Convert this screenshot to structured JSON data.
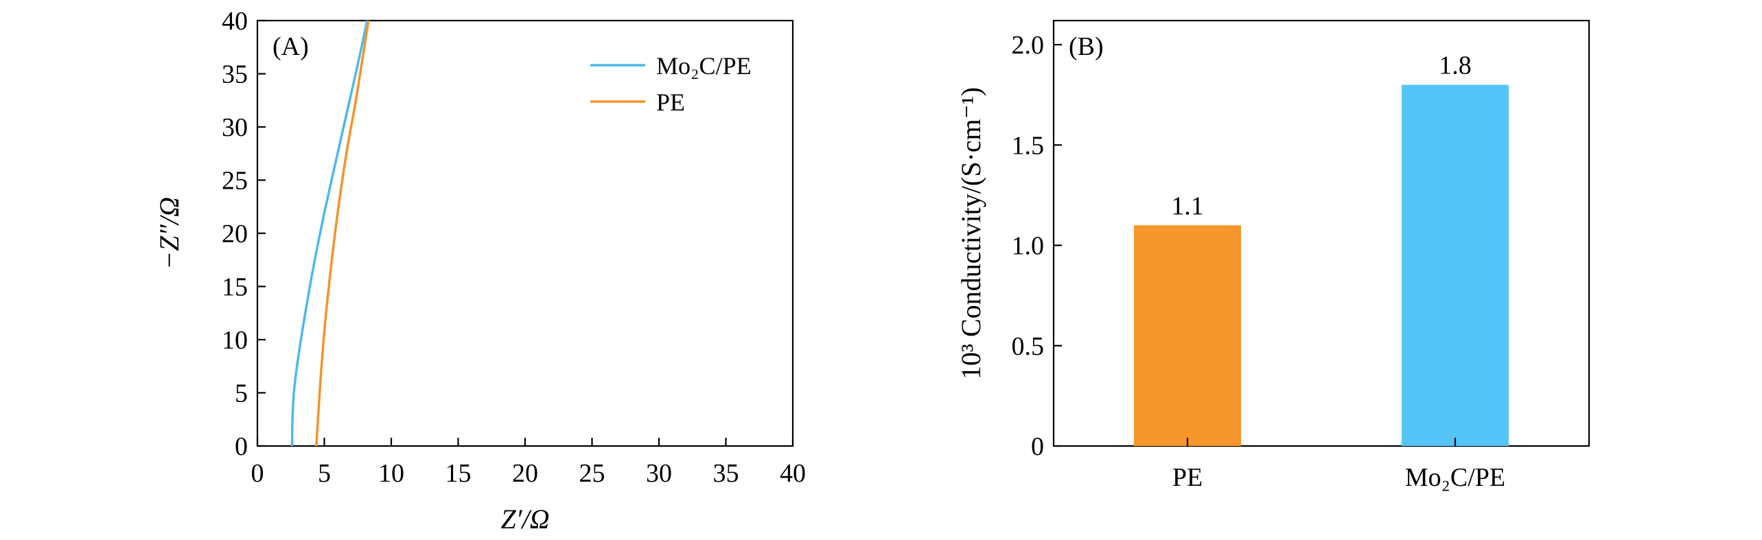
{
  "chart_data": [
    {
      "panel": "(A)",
      "type": "line",
      "xlabel": "Z′/Ω",
      "ylabel": "−Z″/Ω",
      "xlim": [
        0,
        40
      ],
      "ylim": [
        0,
        40
      ],
      "xticks": [
        0,
        5,
        10,
        15,
        20,
        25,
        30,
        35,
        40
      ],
      "yticks": [
        0,
        5,
        10,
        15,
        20,
        25,
        30,
        35,
        40
      ],
      "legend_position": "top-right",
      "series": [
        {
          "name": "Mo₂C/PE",
          "color": "#4db8ec",
          "x": [
            2.6,
            2.6,
            2.7,
            3.0,
            3.5,
            4.2,
            5.0,
            5.9,
            6.8,
            7.7,
            8.2
          ],
          "y": [
            0,
            2,
            5,
            8,
            12,
            17,
            22,
            27,
            32,
            37,
            40
          ]
        },
        {
          "name": "PE",
          "color": "#f5922a",
          "x": [
            4.4,
            4.5,
            4.7,
            5.0,
            5.5,
            6.1,
            6.7,
            7.3,
            7.8,
            8.3
          ],
          "y": [
            0,
            2,
            6,
            11,
            17,
            23,
            28,
            32,
            36,
            40
          ]
        }
      ]
    },
    {
      "panel": "(B)",
      "type": "bar",
      "categories": [
        "PE",
        "Mo₂C/PE"
      ],
      "values": [
        1.1,
        1.8
      ],
      "data_labels": [
        "1.1",
        "1.8"
      ],
      "colors": [
        "#f7962b",
        "#55c5f7"
      ],
      "ylabel": "10³ Conductivity/(S·cm⁻¹)",
      "ylim": [
        0,
        2.12
      ],
      "yticks": [
        0,
        0.5,
        1.0,
        1.5,
        2.0
      ],
      "ytick_labels": [
        "0",
        "0.5",
        "1.0",
        "1.5",
        "2.0"
      ]
    }
  ]
}
